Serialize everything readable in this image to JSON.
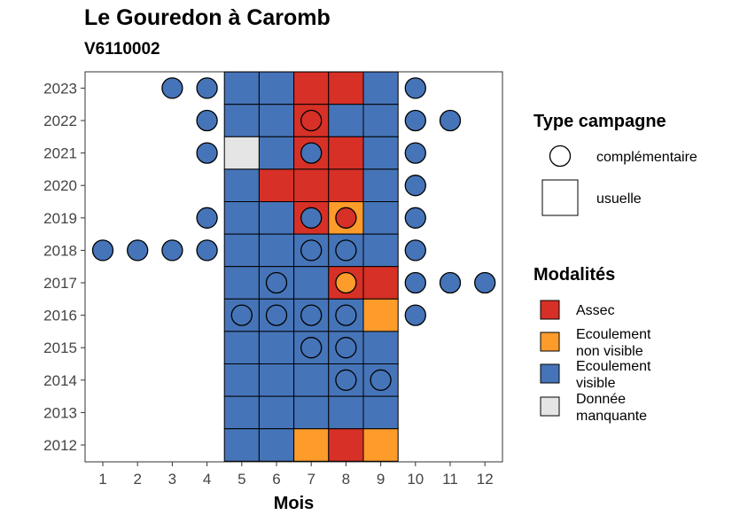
{
  "chart_data": {
    "type": "heatmap",
    "title": "Le Gouredon à Caromb",
    "subtitle": "V6110002",
    "xlabel": "Mois",
    "ylabel": "",
    "x_ticks": [
      "1",
      "2",
      "3",
      "4",
      "5",
      "6",
      "7",
      "8",
      "9",
      "10",
      "11",
      "12"
    ],
    "y_ticks": [
      "2012",
      "2013",
      "2014",
      "2015",
      "2016",
      "2017",
      "2018",
      "2019",
      "2020",
      "2021",
      "2022",
      "2023"
    ],
    "legend_campagne": {
      "title": "Type campagne",
      "items": [
        {
          "key": "complementaire",
          "label": "complémentaire",
          "shape": "circle"
        },
        {
          "key": "usuelle",
          "label": "usuelle",
          "shape": "square"
        }
      ]
    },
    "legend_modalites": {
      "title": "Modalités",
      "items": [
        {
          "key": "A",
          "label": [
            "Assec"
          ],
          "color": "#d73027"
        },
        {
          "key": "N",
          "label": [
            "Ecoulement",
            "non visible"
          ],
          "color": "#fd9b2b"
        },
        {
          "key": "V",
          "label": [
            "Ecoulement",
            "visible"
          ],
          "color": "#4674b8"
        },
        {
          "key": "M",
          "label": [
            "Donnée",
            "manquante"
          ],
          "color": "#e5e5e5"
        }
      ]
    },
    "usuelle": [
      {
        "year": 2023,
        "months": [
          "V",
          "V",
          "A",
          "A",
          "V"
        ]
      },
      {
        "year": 2022,
        "months": [
          "V",
          "V",
          "A",
          "V",
          "V"
        ]
      },
      {
        "year": 2021,
        "months": [
          "M",
          "V",
          "A",
          "A",
          "V"
        ]
      },
      {
        "year": 2020,
        "months": [
          "V",
          "A",
          "A",
          "A",
          "V"
        ]
      },
      {
        "year": 2019,
        "months": [
          "V",
          "V",
          "A",
          "N",
          "V"
        ]
      },
      {
        "year": 2018,
        "months": [
          "V",
          "V",
          "V",
          "V",
          "V"
        ]
      },
      {
        "year": 2017,
        "months": [
          "V",
          "V",
          "V",
          "A",
          "A"
        ]
      },
      {
        "year": 2016,
        "months": [
          "V",
          "V",
          "V",
          "V",
          "N"
        ]
      },
      {
        "year": 2015,
        "months": [
          "V",
          "V",
          "V",
          "V",
          "V"
        ]
      },
      {
        "year": 2014,
        "months": [
          "V",
          "V",
          "V",
          "V",
          "V"
        ]
      },
      {
        "year": 2013,
        "months": [
          "V",
          "V",
          "V",
          "V",
          "V"
        ]
      },
      {
        "year": 2012,
        "months": [
          "V",
          "V",
          "N",
          "A",
          "N"
        ]
      }
    ],
    "usuelle_month_range": [
      5,
      9
    ],
    "complementaire": [
      {
        "year": 2023,
        "month": 3,
        "mod": "V"
      },
      {
        "year": 2023,
        "month": 4,
        "mod": "V"
      },
      {
        "year": 2023,
        "month": 10,
        "mod": "V"
      },
      {
        "year": 2022,
        "month": 4,
        "mod": "V"
      },
      {
        "year": 2022,
        "month": 7,
        "mod": "A"
      },
      {
        "year": 2022,
        "month": 10,
        "mod": "V"
      },
      {
        "year": 2022,
        "month": 11,
        "mod": "V"
      },
      {
        "year": 2021,
        "month": 4,
        "mod": "V"
      },
      {
        "year": 2021,
        "month": 7,
        "mod": "V"
      },
      {
        "year": 2021,
        "month": 10,
        "mod": "V"
      },
      {
        "year": 2020,
        "month": 10,
        "mod": "V"
      },
      {
        "year": 2019,
        "month": 4,
        "mod": "V"
      },
      {
        "year": 2019,
        "month": 7,
        "mod": "V"
      },
      {
        "year": 2019,
        "month": 8,
        "mod": "A"
      },
      {
        "year": 2019,
        "month": 10,
        "mod": "V"
      },
      {
        "year": 2018,
        "month": 1,
        "mod": "V"
      },
      {
        "year": 2018,
        "month": 2,
        "mod": "V"
      },
      {
        "year": 2018,
        "month": 3,
        "mod": "V"
      },
      {
        "year": 2018,
        "month": 4,
        "mod": "V"
      },
      {
        "year": 2018,
        "month": 7,
        "mod": "V"
      },
      {
        "year": 2018,
        "month": 8,
        "mod": "V"
      },
      {
        "year": 2018,
        "month": 10,
        "mod": "V"
      },
      {
        "year": 2017,
        "month": 6,
        "mod": "V"
      },
      {
        "year": 2017,
        "month": 8,
        "mod": "N"
      },
      {
        "year": 2017,
        "month": 10,
        "mod": "V"
      },
      {
        "year": 2017,
        "month": 11,
        "mod": "V"
      },
      {
        "year": 2017,
        "month": 12,
        "mod": "V"
      },
      {
        "year": 2016,
        "month": 5,
        "mod": "V"
      },
      {
        "year": 2016,
        "month": 6,
        "mod": "V"
      },
      {
        "year": 2016,
        "month": 7,
        "mod": "V"
      },
      {
        "year": 2016,
        "month": 8,
        "mod": "V"
      },
      {
        "year": 2016,
        "month": 10,
        "mod": "V"
      },
      {
        "year": 2015,
        "month": 7,
        "mod": "V"
      },
      {
        "year": 2015,
        "month": 8,
        "mod": "V"
      },
      {
        "year": 2014,
        "month": 8,
        "mod": "V"
      },
      {
        "year": 2014,
        "month": 9,
        "mod": "V"
      }
    ]
  }
}
